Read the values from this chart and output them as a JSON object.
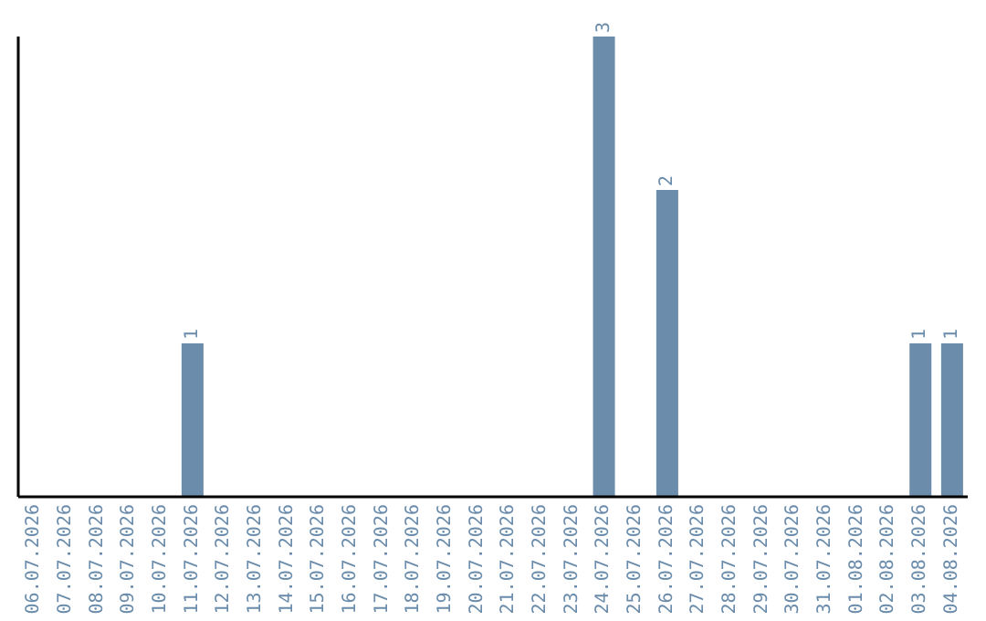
{
  "chart_data": {
    "type": "bar",
    "categories": [
      "06.07.2026",
      "07.07.2026",
      "08.07.2026",
      "09.07.2026",
      "10.07.2026",
      "11.07.2026",
      "12.07.2026",
      "13.07.2026",
      "14.07.2026",
      "15.07.2026",
      "16.07.2026",
      "17.07.2026",
      "18.07.2026",
      "19.07.2026",
      "20.07.2026",
      "21.07.2026",
      "22.07.2026",
      "23.07.2026",
      "24.07.2026",
      "25.07.2026",
      "26.07.2026",
      "27.07.2026",
      "28.07.2026",
      "29.07.2026",
      "30.07.2026",
      "31.07.2026",
      "01.08.2026",
      "02.08.2026",
      "03.08.2026",
      "04.08.2026"
    ],
    "values": [
      0,
      0,
      0,
      0,
      0,
      1,
      0,
      0,
      0,
      0,
      0,
      0,
      0,
      0,
      0,
      0,
      0,
      0,
      3,
      0,
      2,
      0,
      0,
      0,
      0,
      0,
      0,
      0,
      1,
      1
    ],
    "value_labels": [
      null,
      null,
      null,
      null,
      null,
      "1",
      null,
      null,
      null,
      null,
      null,
      null,
      null,
      null,
      null,
      null,
      null,
      null,
      "3",
      null,
      "2",
      null,
      null,
      null,
      null,
      null,
      null,
      null,
      "1",
      "1"
    ],
    "color": "#6b8cab",
    "grid": false,
    "tick_labels": "x",
    "legend": false
  }
}
